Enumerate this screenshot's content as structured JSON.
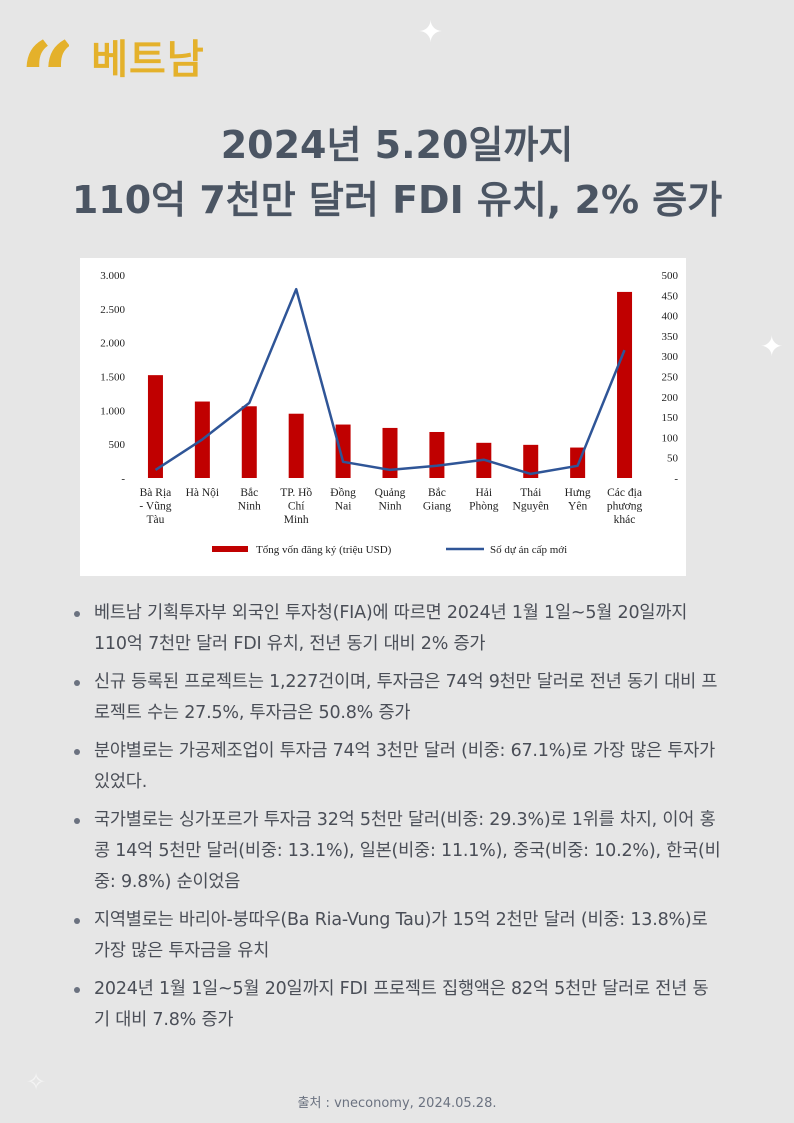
{
  "header": {
    "quote_mark": "“",
    "country": "베트남"
  },
  "title": {
    "line1": "2024년 5.20일까지",
    "line2": "110억 7천만 달러 FDI 유치, 2% 증가"
  },
  "chart_data": {
    "type": "bar",
    "categories": [
      [
        "Bà Rịa",
        "- Vũng",
        "Tàu"
      ],
      [
        "Hà Nội"
      ],
      [
        "Bắc",
        "Ninh"
      ],
      [
        "TP. Hồ",
        "Chí",
        "Minh"
      ],
      [
        "Đồng",
        "Nai"
      ],
      [
        "Quảng",
        "Ninh"
      ],
      [
        "Bắc",
        "Giang"
      ],
      [
        "Hải",
        "Phòng"
      ],
      [
        "Thái",
        "Nguyên"
      ],
      [
        "Hưng",
        "Yên"
      ],
      [
        "Các địa",
        "phương",
        "khác"
      ]
    ],
    "series": [
      {
        "name": "Tổng vốn đăng ký (triệu USD)",
        "type": "bar",
        "axis": "left",
        "color": "#c00000",
        "values": [
          1520,
          1130,
          1060,
          950,
          790,
          740,
          680,
          520,
          490,
          450,
          2750
        ]
      },
      {
        "name": "Số dự án cấp mới",
        "type": "line",
        "axis": "right",
        "color": "#2f5597",
        "values": [
          20,
          95,
          185,
          465,
          40,
          20,
          30,
          45,
          10,
          30,
          315
        ]
      }
    ],
    "left_ticks": [
      "-",
      "500",
      "1.000",
      "1.500",
      "2.000",
      "2.500",
      "3.000"
    ],
    "right_ticks": [
      "-",
      "50",
      "100",
      "150",
      "200",
      "250",
      "300",
      "350",
      "400",
      "450",
      "500"
    ],
    "ylim_left": [
      0,
      3000
    ],
    "ylim_right": [
      0,
      500
    ],
    "legend_position": "bottom",
    "grid": false
  },
  "bullets": [
    "베트남 기획투자부 외국인 투자청(FIA)에 따르면 2024년 1월 1일~5월 20일까지 110억 7천만 달러 FDI 유치, 전년 동기 대비 2% 증가",
    "신규 등록된 프로젝트는 1,227건이며, 투자금은 74억 9천만 달러로 전년 동기 대비 프로젝트 수는 27.5%, 투자금은 50.8% 증가",
    "분야별로는 가공제조업이 투자금 74억 3천만 달러 (비중: 67.1%)로 가장 많은 투자가 있었다.",
    "국가별로는 싱가포르가 투자금 32억 5천만 달러(비중: 29.3%)로 1위를 차지, 이어 홍콩 14억 5천만 달러(비중: 13.1%), 일본(비중: 11.1%), 중국(비중: 10.2%), 한국(비중: 9.8%) 순이었음",
    "지역별로는 바리아-붕따우(Ba Ria-Vung Tau)가 15억 2천만 달러 (비중: 13.8%)로 가장 많은 투자금을 유치",
    "2024년 1월 1일~5월 20일까지 FDI 프로젝트 집행액은 82억 5천만 달러로 전년 동기 대비 7.8% 증가"
  ],
  "source": "출처 : vneconomy, 2024.05.28."
}
